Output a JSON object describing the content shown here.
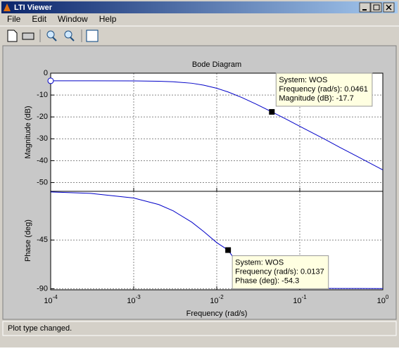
{
  "window": {
    "title": "LTI Viewer",
    "menu": [
      "File",
      "Edit",
      "Window",
      "Help"
    ],
    "status": "Plot type changed."
  },
  "chart_data": [
    {
      "type": "line",
      "title": "Bode Diagram",
      "ylabel": "Magnitude (dB)",
      "xscale": "log",
      "grid": true,
      "color": "#0000c8",
      "x": [
        0.0001,
        0.0003,
        0.001,
        0.002,
        0.003,
        0.005,
        0.007,
        0.01,
        0.0137,
        0.02,
        0.03,
        0.0461,
        0.07,
        0.1,
        0.2,
        0.3,
        0.5,
        1
      ],
      "values": [
        -3.5,
        -3.5,
        -3.55,
        -3.7,
        -3.95,
        -4.6,
        -5.5,
        -6.9,
        -8.6,
        -11.1,
        -14.2,
        -17.7,
        -21.2,
        -24.3,
        -30.2,
        -33.8,
        -38.2,
        -44.2
      ],
      "xlim": [
        0.0001,
        1
      ],
      "xticks": [
        0.0001,
        0.001,
        0.01,
        0.1,
        1
      ],
      "ylim": [
        -54,
        0
      ],
      "yticks": [
        0,
        -10,
        -20,
        -30,
        -40,
        -50
      ],
      "annotation": {
        "x": 0.0461,
        "y": -17.7,
        "lines": [
          "System: WOS",
          "Frequency (rad/s): 0.0461",
          "Magnitude (dB): -17.7"
        ]
      }
    },
    {
      "type": "line",
      "ylabel": "Phase (deg)",
      "xlabel": "Frequency  (rad/s)",
      "xscale": "log",
      "grid": true,
      "color": "#0000c8",
      "x": [
        0.0001,
        0.0003,
        0.001,
        0.002,
        0.003,
        0.005,
        0.007,
        0.01,
        0.0137,
        0.02,
        0.03,
        0.0461,
        0.07,
        0.1,
        0.2,
        0.3,
        0.5,
        1
      ],
      "values": [
        -0.6,
        -1.9,
        -6.2,
        -12.2,
        -18.1,
        -28.5,
        -37.3,
        -47.4,
        -54.3,
        -72,
        -85,
        -89,
        -89.5,
        -89.6,
        -89.7,
        -89.8,
        -89.8,
        -89.9
      ],
      "xlim": [
        0.0001,
        1
      ],
      "xticks": [
        {
          "value": 0.0001,
          "label": "10",
          "sup": "-4"
        },
        {
          "value": 0.001,
          "label": "10",
          "sup": "-3"
        },
        {
          "value": 0.01,
          "label": "10",
          "sup": "-2"
        },
        {
          "value": 0.1,
          "label": "10",
          "sup": "-1"
        },
        {
          "value": 1,
          "label": "10",
          "sup": "0"
        }
      ],
      "ylim": [
        -91,
        0
      ],
      "yticks": [
        -45,
        -90
      ],
      "annotation": {
        "x": 0.0137,
        "y": -54.3,
        "lines": [
          "System: WOS",
          "Frequency (rad/s): 0.0137",
          "Phase (deg): -54.3"
        ]
      }
    }
  ]
}
